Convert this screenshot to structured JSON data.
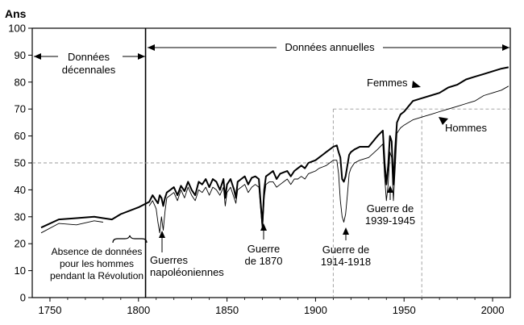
{
  "chart_data": {
    "type": "line",
    "ylabel": "Ans",
    "xlim": [
      1740,
      2010
    ],
    "ylim": [
      0,
      100
    ],
    "x_ticks": [
      "1750",
      "1800",
      "1850",
      "1900",
      "1950",
      "2000"
    ],
    "y_ticks": [
      "0",
      "10",
      "20",
      "30",
      "40",
      "50",
      "60",
      "70",
      "80",
      "90",
      "100"
    ],
    "grid": false,
    "series": [
      {
        "name": "Femmes",
        "color": "#000000",
        "x": [
          1745,
          1755,
          1765,
          1775,
          1780,
          1785,
          1790,
          1800,
          1806,
          1808,
          1810,
          1811,
          1812,
          1813,
          1814,
          1815,
          1816,
          1818,
          1820,
          1822,
          1824,
          1826,
          1828,
          1830,
          1832,
          1834,
          1836,
          1838,
          1840,
          1842,
          1844,
          1846,
          1848,
          1849,
          1850,
          1852,
          1854,
          1855,
          1856,
          1858,
          1860,
          1862,
          1864,
          1866,
          1868,
          1870,
          1871,
          1872,
          1874,
          1876,
          1878,
          1880,
          1882,
          1884,
          1886,
          1888,
          1890,
          1892,
          1894,
          1896,
          1898,
          1900,
          1902,
          1904,
          1906,
          1908,
          1910,
          1912,
          1913,
          1914,
          1915,
          1916,
          1917,
          1918,
          1919,
          1920,
          1922,
          1925,
          1930,
          1935,
          1938,
          1939,
          1940,
          1941,
          1942,
          1943,
          1944,
          1945,
          1946,
          1948,
          1950,
          1955,
          1960,
          1965,
          1970,
          1975,
          1980,
          1985,
          1990,
          1995,
          2000,
          2005,
          2009
        ],
        "values": [
          26,
          29,
          29.5,
          30,
          29.5,
          29,
          31,
          33.5,
          35.5,
          38,
          36,
          35,
          38,
          37,
          34,
          37,
          39,
          40,
          41,
          38,
          41.5,
          39.5,
          43,
          40,
          38,
          43,
          42,
          44,
          41,
          44,
          43,
          40,
          44,
          37,
          42,
          44,
          40,
          37,
          43,
          44,
          45,
          42,
          44.5,
          45,
          44,
          27,
          40,
          45,
          46,
          47,
          44,
          46,
          46.5,
          47,
          45,
          47,
          48,
          49,
          48,
          50,
          50.5,
          51,
          52,
          53,
          54,
          55,
          56,
          56.5,
          54,
          52,
          44,
          43,
          45,
          49,
          53,
          54,
          55,
          56,
          56,
          60,
          62,
          50,
          42,
          49,
          60,
          58,
          42,
          55,
          65,
          68,
          69,
          73,
          74,
          75,
          76,
          78,
          79,
          81,
          82,
          83,
          84,
          85,
          85.5
        ]
      },
      {
        "name": "Hommes",
        "color": "#000000",
        "x": [
          1745,
          1755,
          1765,
          1775,
          1780,
          1785,
          1790,
          1800,
          1806,
          1808,
          1810,
          1811,
          1812,
          1813,
          1814,
          1815,
          1816,
          1818,
          1820,
          1822,
          1824,
          1826,
          1828,
          1830,
          1832,
          1834,
          1836,
          1838,
          1840,
          1842,
          1844,
          1846,
          1848,
          1849,
          1850,
          1852,
          1854,
          1855,
          1856,
          1858,
          1860,
          1862,
          1864,
          1866,
          1868,
          1870,
          1871,
          1872,
          1874,
          1876,
          1878,
          1880,
          1882,
          1884,
          1886,
          1888,
          1890,
          1892,
          1894,
          1896,
          1898,
          1900,
          1902,
          1904,
          1906,
          1908,
          1910,
          1912,
          1913,
          1914,
          1915,
          1916,
          1917,
          1918,
          1919,
          1920,
          1922,
          1925,
          1930,
          1935,
          1938,
          1939,
          1940,
          1941,
          1942,
          1943,
          1944,
          1945,
          1946,
          1948,
          1950,
          1955,
          1960,
          1965,
          1970,
          1975,
          1980,
          1985,
          1990,
          1995,
          2000,
          2005,
          2009
        ],
        "values": [
          24,
          27.5,
          27,
          28.5,
          28,
          null,
          null,
          null,
          34,
          36,
          33,
          28,
          24,
          30,
          25,
          32,
          37,
          38,
          39,
          36,
          40,
          37,
          41,
          38,
          36,
          40,
          39,
          41,
          38,
          41,
          40,
          38,
          41,
          34,
          39,
          41,
          37,
          35,
          40,
          41,
          42,
          39,
          41,
          42,
          41,
          25,
          37,
          42,
          43,
          43,
          41,
          42,
          43,
          44,
          42,
          44,
          44,
          45,
          44,
          46,
          46.5,
          47,
          48,
          48.5,
          49,
          50,
          51,
          51,
          46,
          36,
          30,
          28,
          31,
          38,
          46,
          48,
          50,
          51,
          52,
          55,
          57,
          45,
          36,
          42,
          54,
          52,
          36,
          48,
          61,
          63,
          64,
          66,
          67,
          68,
          69,
          70,
          71,
          72,
          73,
          75,
          76,
          77,
          78.5
        ]
      }
    ],
    "annotations": {
      "decennales": [
        "Données",
        "décennales"
      ],
      "annuelles": "Données annuelles",
      "absence": [
        "Absence de données",
        "pour les hommes",
        "pendant la Révolution"
      ],
      "napoleon": [
        "Guerres",
        "napoléoniennes"
      ],
      "g1870": [
        "Guerre",
        "de 1870"
      ],
      "g1914": [
        "Guerre de",
        "1914-1918"
      ],
      "g1939": [
        "Guerre de",
        "1939-1945"
      ],
      "femmes": "Femmes",
      "hommes": "Hommes"
    }
  }
}
